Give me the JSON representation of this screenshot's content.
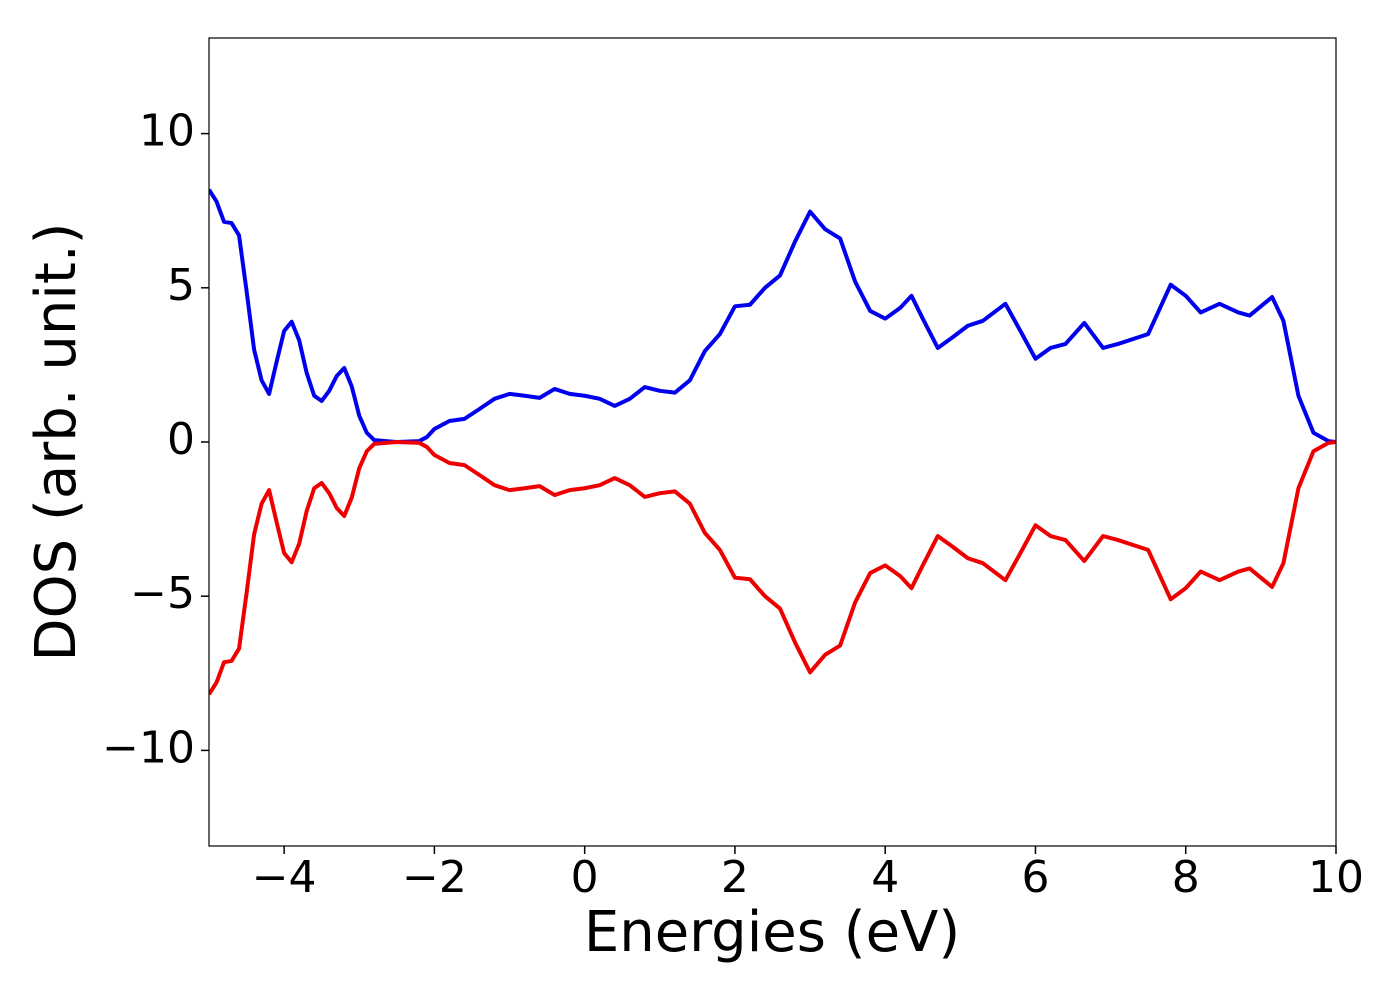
{
  "chart_data": {
    "type": "line",
    "xlabel": "Energies (eV)",
    "ylabel": "DOS (arb. unit.)",
    "x": [
      -5,
      -4.9,
      -4.8,
      -4.7,
      -4.6,
      -4.5,
      -4.4,
      -4.3,
      -4.2,
      -4.1,
      -4.0,
      -3.9,
      -3.8,
      -3.7,
      -3.6,
      -3.5,
      -3.4,
      -3.3,
      -3.2,
      -3.1,
      -3.0,
      -2.9,
      -2.8,
      -2.5,
      -2.2,
      -2.1,
      -2.0,
      -1.8,
      -1.6,
      -1.4,
      -1.2,
      -1.0,
      -0.8,
      -0.6,
      -0.4,
      -0.2,
      0.0,
      0.2,
      0.4,
      0.6,
      0.8,
      1.0,
      1.2,
      1.4,
      1.6,
      1.8,
      2.0,
      2.2,
      2.4,
      2.6,
      2.8,
      3.0,
      3.2,
      3.4,
      3.6,
      3.8,
      4.0,
      4.2,
      4.35,
      4.5,
      4.7,
      4.9,
      5.1,
      5.3,
      5.6,
      5.8,
      6.0,
      6.2,
      6.4,
      6.65,
      6.9,
      7.1,
      7.3,
      7.5,
      7.8,
      8.0,
      8.2,
      8.45,
      8.7,
      8.85,
      9.15,
      9.3,
      9.5,
      9.7,
      9.9,
      10
    ],
    "series": [
      {
        "color": "#0000ee",
        "values": [
          8.18,
          7.8,
          7.14,
          7.1,
          6.7,
          4.9,
          3.0,
          2.0,
          1.56,
          2.6,
          3.6,
          3.9,
          3.3,
          2.24,
          1.5,
          1.33,
          1.66,
          2.14,
          2.4,
          1.8,
          0.85,
          0.3,
          0.06,
          0,
          0.03,
          0.16,
          0.42,
          0.68,
          0.75,
          1.07,
          1.4,
          1.56,
          1.5,
          1.43,
          1.72,
          1.56,
          1.5,
          1.4,
          1.17,
          1.4,
          1.78,
          1.66,
          1.6,
          2.0,
          2.95,
          3.5,
          4.4,
          4.45,
          5.0,
          5.4,
          6.5,
          7.47,
          6.9,
          6.6,
          5.2,
          4.25,
          4.0,
          4.35,
          4.74,
          4.0,
          3.05,
          3.4,
          3.77,
          3.93,
          4.48,
          3.6,
          2.7,
          3.05,
          3.18,
          3.86,
          3.05,
          3.18,
          3.34,
          3.5,
          5.1,
          4.74,
          4.2,
          4.48,
          4.2,
          4.1,
          4.7,
          3.93,
          1.5,
          0.3,
          0.03,
          0
        ]
      },
      {
        "color": "#ee0000",
        "values": [
          -8.18,
          -7.8,
          -7.14,
          -7.1,
          -6.7,
          -4.9,
          -3.0,
          -2.0,
          -1.56,
          -2.6,
          -3.6,
          -3.9,
          -3.3,
          -2.24,
          -1.5,
          -1.33,
          -1.66,
          -2.14,
          -2.4,
          -1.8,
          -0.85,
          -0.3,
          -0.06,
          0,
          -0.03,
          -0.16,
          -0.42,
          -0.68,
          -0.75,
          -1.07,
          -1.4,
          -1.56,
          -1.5,
          -1.43,
          -1.72,
          -1.56,
          -1.5,
          -1.4,
          -1.17,
          -1.4,
          -1.78,
          -1.66,
          -1.6,
          -2.0,
          -2.95,
          -3.5,
          -4.4,
          -4.45,
          -5.0,
          -5.4,
          -6.5,
          -7.47,
          -6.9,
          -6.6,
          -5.2,
          -4.25,
          -4.0,
          -4.35,
          -4.74,
          -4.0,
          -3.05,
          -3.4,
          -3.77,
          -3.93,
          -4.48,
          -3.6,
          -2.7,
          -3.05,
          -3.18,
          -3.86,
          -3.05,
          -3.18,
          -3.34,
          -3.5,
          -5.1,
          -4.74,
          -4.2,
          -4.48,
          -4.2,
          -4.1,
          -4.7,
          -3.93,
          -1.5,
          -0.3,
          -0.03,
          0
        ]
      }
    ],
    "xlim": [
      -5,
      10
    ],
    "ylim": [
      -13.1,
      13.1
    ],
    "xticks": [
      {
        "value": -4,
        "label": "−4"
      },
      {
        "value": -2,
        "label": "−2"
      },
      0,
      2,
      4,
      6,
      8,
      10
    ],
    "yticks": [
      {
        "value": -10,
        "label": "−10"
      },
      {
        "value": -5,
        "label": "−5"
      },
      0,
      5,
      10
    ],
    "grid": false
  }
}
